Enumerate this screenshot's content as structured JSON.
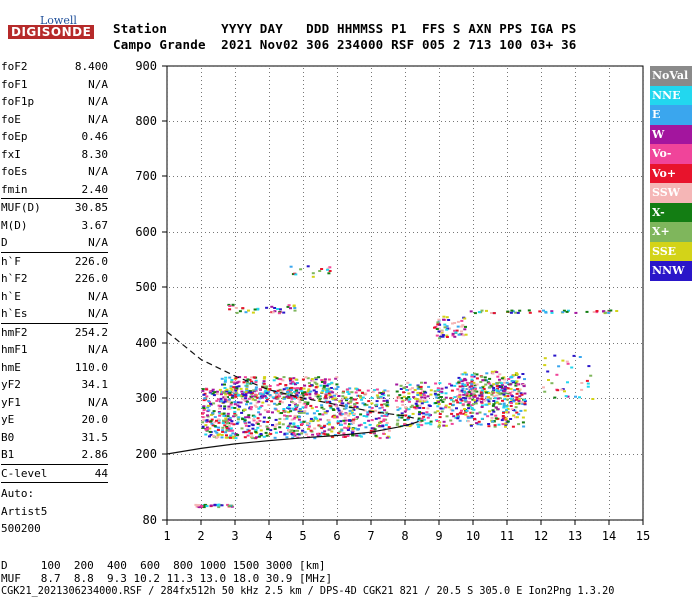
{
  "logo": {
    "top": "Lowell",
    "main": "DIGISONDE"
  },
  "header": {
    "row1": "Station       YYYY DAY   DDD HHMMSS P1  FFS S AXN PPS IGA PS",
    "row2": "Campo Grande  2021 Nov02 306 234000 RSF 005 2 713 100 03+ 36"
  },
  "params_group1": [
    {
      "name": "foF2",
      "value": "8.400"
    },
    {
      "name": "foF1",
      "value": "N/A"
    },
    {
      "name": "foF1p",
      "value": "N/A"
    },
    {
      "name": "foE",
      "value": "N/A"
    },
    {
      "name": "foEp",
      "value": "0.46"
    },
    {
      "name": "fxI",
      "value": "8.30"
    },
    {
      "name": "foEs",
      "value": "N/A"
    },
    {
      "name": "fmin",
      "value": "2.40"
    }
  ],
  "params_group2": [
    {
      "name": "MUF(D)",
      "value": "30.85"
    },
    {
      "name": "M(D)",
      "value": "3.67"
    },
    {
      "name": "D",
      "value": "N/A"
    }
  ],
  "params_group3": [
    {
      "name": "h`F",
      "value": "226.0"
    },
    {
      "name": "h`F2",
      "value": "226.0"
    },
    {
      "name": "h`E",
      "value": "N/A"
    },
    {
      "name": "h`Es",
      "value": "N/A"
    }
  ],
  "params_group4": [
    {
      "name": "hmF2",
      "value": "254.2"
    },
    {
      "name": "hmF1",
      "value": "N/A"
    },
    {
      "name": "hmE",
      "value": "110.0"
    },
    {
      "name": "yF2",
      "value": "34.1"
    },
    {
      "name": "yF1",
      "value": "N/A"
    },
    {
      "name": "yE",
      "value": "20.0"
    },
    {
      "name": "B0",
      "value": "31.5"
    },
    {
      "name": "B1",
      "value": "2.86"
    }
  ],
  "params_group5": [
    {
      "name": "C-level",
      "value": "44"
    }
  ],
  "auto": {
    "line1": "Auto:",
    "line2": "Artist5",
    "line3": "500200"
  },
  "legend": [
    {
      "label": "NoVal",
      "color": "#8a8a8a"
    },
    {
      "label": "NNE",
      "color": "#22d7ef"
    },
    {
      "label": "E",
      "color": "#3aa6ee"
    },
    {
      "label": "W",
      "color": "#a3159e"
    },
    {
      "label": "Vo-",
      "color": "#f0449a"
    },
    {
      "label": "Vo+",
      "color": "#e8132c"
    },
    {
      "label": "SSW",
      "color": "#f5b6b6"
    },
    {
      "label": "X-",
      "color": "#137d13"
    },
    {
      "label": "X+",
      "color": "#7fb65c"
    },
    {
      "label": "SSE",
      "color": "#d3d318"
    },
    {
      "label": "NNW",
      "color": "#2a16c9"
    }
  ],
  "bottom": {
    "line1": "D     100  200  400  600  800 1000 1500 3000 [km]",
    "line2": "MUF   8.7  8.8  9.3 10.2 11.3 13.0 18.0 30.9 [MHz]",
    "line3": "CGK21_2021306234000.RSF / 284fx512h 50 kHz 2.5 km / DPS-4D CGK21 821 / 20.5 S 305.0 E Ion2Png 1.3.20"
  },
  "chart_data": {
    "type": "scatter",
    "xlim": [
      1,
      15
    ],
    "ylim": [
      80,
      900
    ],
    "x_ticks": [
      "1",
      "2",
      "3",
      "4",
      "5",
      "6",
      "7",
      "8",
      "9",
      "10",
      "11",
      "12",
      "13",
      "14",
      "15"
    ],
    "y_ticks": [
      "80",
      "200",
      "300",
      "400",
      "500",
      "600",
      "700",
      "800",
      "900"
    ],
    "y_scale": "nonlinear",
    "grid": true,
    "legend_position": "right",
    "clusters": [
      {
        "x": [
          2.0,
          7.5
        ],
        "y": [
          230,
          320
        ],
        "density": 900
      },
      {
        "x": [
          7.7,
          11.5
        ],
        "y": [
          250,
          330
        ],
        "density": 450
      },
      {
        "x": [
          9.5,
          11.5
        ],
        "y": [
          290,
          350
        ],
        "density": 200
      },
      {
        "x": [
          2.5,
          6.0
        ],
        "y": [
          300,
          340
        ],
        "density": 250
      },
      {
        "x": [
          12.0,
          13.5
        ],
        "y": [
          300,
          380
        ],
        "density": 35
      },
      {
        "x": [
          8.8,
          9.8
        ],
        "y": [
          410,
          450
        ],
        "density": 60
      },
      {
        "x": [
          9.9,
          14.2
        ],
        "y": [
          455,
          460
        ],
        "density": 45
      },
      {
        "x": [
          2.6,
          4.9
        ],
        "y": [
          455,
          470
        ],
        "density": 35
      },
      {
        "x": [
          4.5,
          6.0
        ],
        "y": [
          520,
          540
        ],
        "density": 15
      },
      {
        "x": [
          1.8,
          2.9
        ],
        "y": [
          105,
          110
        ],
        "density": 40
      }
    ],
    "curves": [
      {
        "name": "profile",
        "style": "solid",
        "x": [
          1.0,
          2.0,
          3.0,
          4.0,
          5.0,
          6.0,
          7.0,
          7.8,
          8.2,
          8.4
        ],
        "y": [
          200,
          210,
          218,
          224,
          229,
          233,
          239,
          248,
          254,
          258
        ]
      },
      {
        "name": "muf",
        "style": "dashed",
        "x": [
          1.0,
          2.0,
          3.0,
          4.0,
          5.0,
          6.0,
          7.0,
          8.0,
          8.4
        ],
        "y": [
          420,
          370,
          340,
          315,
          300,
          288,
          276,
          268,
          262
        ]
      }
    ]
  }
}
